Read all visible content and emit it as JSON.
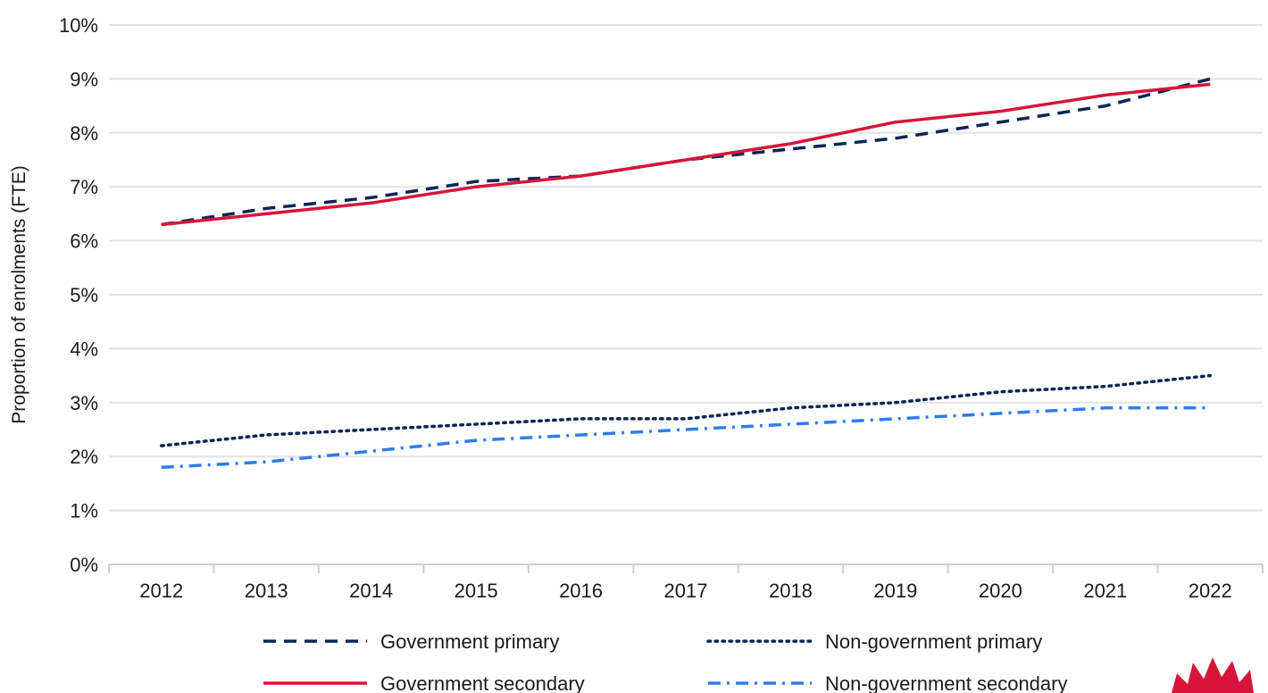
{
  "chart_data": {
    "type": "line",
    "title": "",
    "xlabel": "",
    "ylabel": "Proportion of enrolments (FTE)",
    "x": [
      "2012",
      "2013",
      "2014",
      "2015",
      "2016",
      "2017",
      "2018",
      "2019",
      "2020",
      "2021",
      "2022"
    ],
    "ylim": [
      0,
      10
    ],
    "yticks": [
      "0%",
      "1%",
      "2%",
      "3%",
      "4%",
      "5%",
      "6%",
      "7%",
      "8%",
      "9%",
      "10%"
    ],
    "grid": true,
    "legend_position": "bottom",
    "series": [
      {
        "name": "Government primary",
        "color": "#0b2555",
        "style": "dashed",
        "values": [
          6.3,
          6.6,
          6.8,
          7.1,
          7.2,
          7.5,
          7.7,
          7.9,
          8.2,
          8.5,
          9.0
        ]
      },
      {
        "name": "Non-government primary",
        "color": "#0b2555",
        "style": "dotted",
        "values": [
          2.2,
          2.4,
          2.5,
          2.6,
          2.7,
          2.7,
          2.9,
          3.0,
          3.2,
          3.3,
          3.5
        ]
      },
      {
        "name": "Government secondary",
        "color": "#d7153a",
        "style": "solid",
        "values": [
          6.3,
          6.5,
          6.7,
          7.0,
          7.2,
          7.5,
          7.8,
          8.2,
          8.4,
          8.7,
          8.9
        ]
      },
      {
        "name": "Non-government secondary",
        "color": "#2e7de9",
        "style": "dashdot",
        "values": [
          1.8,
          1.9,
          2.1,
          2.3,
          2.4,
          2.5,
          2.6,
          2.7,
          2.8,
          2.9,
          2.9
        ]
      }
    ]
  },
  "logo": {
    "name": "waratah-logo-icon",
    "color": "#d7153a"
  }
}
